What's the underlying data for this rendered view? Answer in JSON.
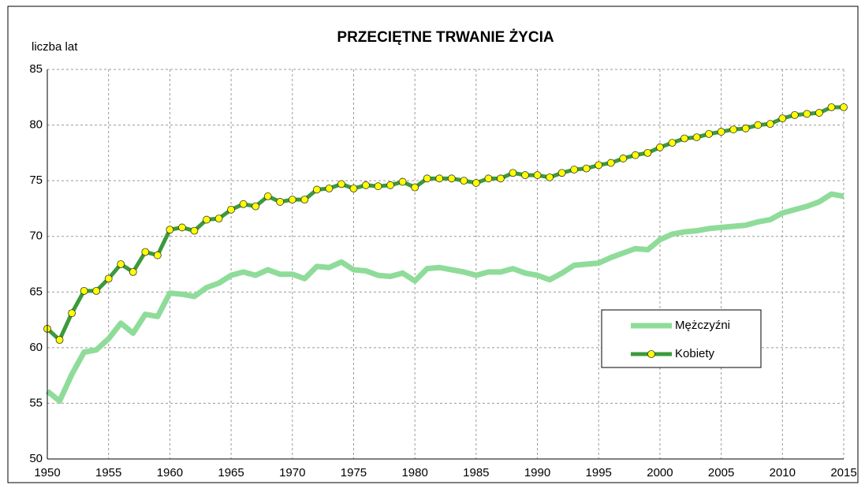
{
  "chart_data": {
    "type": "line",
    "title": "PRZECIĘTNE TRWANIE ŻYCIA",
    "y_label": "liczba lat",
    "x": [
      1950,
      1951,
      1952,
      1953,
      1954,
      1955,
      1956,
      1957,
      1958,
      1959,
      1960,
      1961,
      1962,
      1963,
      1964,
      1965,
      1966,
      1967,
      1968,
      1969,
      1970,
      1971,
      1972,
      1973,
      1974,
      1975,
      1976,
      1977,
      1978,
      1979,
      1980,
      1981,
      1982,
      1983,
      1984,
      1985,
      1986,
      1987,
      1988,
      1989,
      1990,
      1991,
      1992,
      1993,
      1994,
      1995,
      1996,
      1997,
      1998,
      1999,
      2000,
      2001,
      2002,
      2003,
      2004,
      2005,
      2006,
      2007,
      2008,
      2009,
      2010,
      2011,
      2012,
      2013,
      2014,
      2015
    ],
    "series": [
      {
        "name": "Mężczyźni",
        "color": "#8fdc9a",
        "markers": false,
        "values": [
          56.1,
          55.2,
          57.6,
          59.6,
          59.8,
          60.8,
          62.2,
          61.3,
          63.0,
          62.8,
          64.9,
          64.8,
          64.6,
          65.4,
          65.8,
          66.5,
          66.8,
          66.5,
          67.0,
          66.6,
          66.6,
          66.2,
          67.3,
          67.2,
          67.7,
          67.0,
          66.9,
          66.5,
          66.4,
          66.7,
          66.0,
          67.1,
          67.2,
          67.0,
          66.8,
          66.5,
          66.8,
          66.8,
          67.1,
          66.7,
          66.5,
          66.1,
          66.7,
          67.4,
          67.5,
          67.6,
          68.1,
          68.5,
          68.9,
          68.8,
          69.7,
          70.2,
          70.4,
          70.5,
          70.7,
          70.8,
          70.9,
          71.0,
          71.3,
          71.5,
          72.1,
          72.4,
          72.7,
          73.1,
          73.8,
          73.6
        ]
      },
      {
        "name": "Kobiety",
        "color": "#3c9a3c",
        "markers": true,
        "marker_color": "#ffff00",
        "values": [
          61.7,
          60.7,
          63.1,
          65.1,
          65.1,
          66.2,
          67.5,
          66.8,
          68.6,
          68.3,
          70.6,
          70.8,
          70.5,
          71.5,
          71.6,
          72.4,
          72.9,
          72.7,
          73.6,
          73.1,
          73.3,
          73.3,
          74.2,
          74.3,
          74.7,
          74.3,
          74.6,
          74.5,
          74.6,
          74.9,
          74.4,
          75.2,
          75.2,
          75.2,
          75.0,
          74.8,
          75.2,
          75.2,
          75.7,
          75.5,
          75.5,
          75.3,
          75.7,
          76.0,
          76.1,
          76.4,
          76.6,
          77.0,
          77.3,
          77.5,
          78.0,
          78.4,
          78.8,
          78.9,
          79.2,
          79.4,
          79.6,
          79.7,
          80.0,
          80.1,
          80.6,
          80.9,
          81.0,
          81.1,
          81.6,
          81.6
        ]
      }
    ],
    "xlim": [
      1950,
      2015
    ],
    "xticks": [
      1950,
      1955,
      1960,
      1965,
      1970,
      1975,
      1980,
      1985,
      1990,
      1995,
      2000,
      2005,
      2010,
      2015
    ],
    "ylim": [
      50,
      85
    ],
    "yticks": [
      50,
      55,
      60,
      65,
      70,
      75,
      80,
      85
    ],
    "grid": true
  }
}
